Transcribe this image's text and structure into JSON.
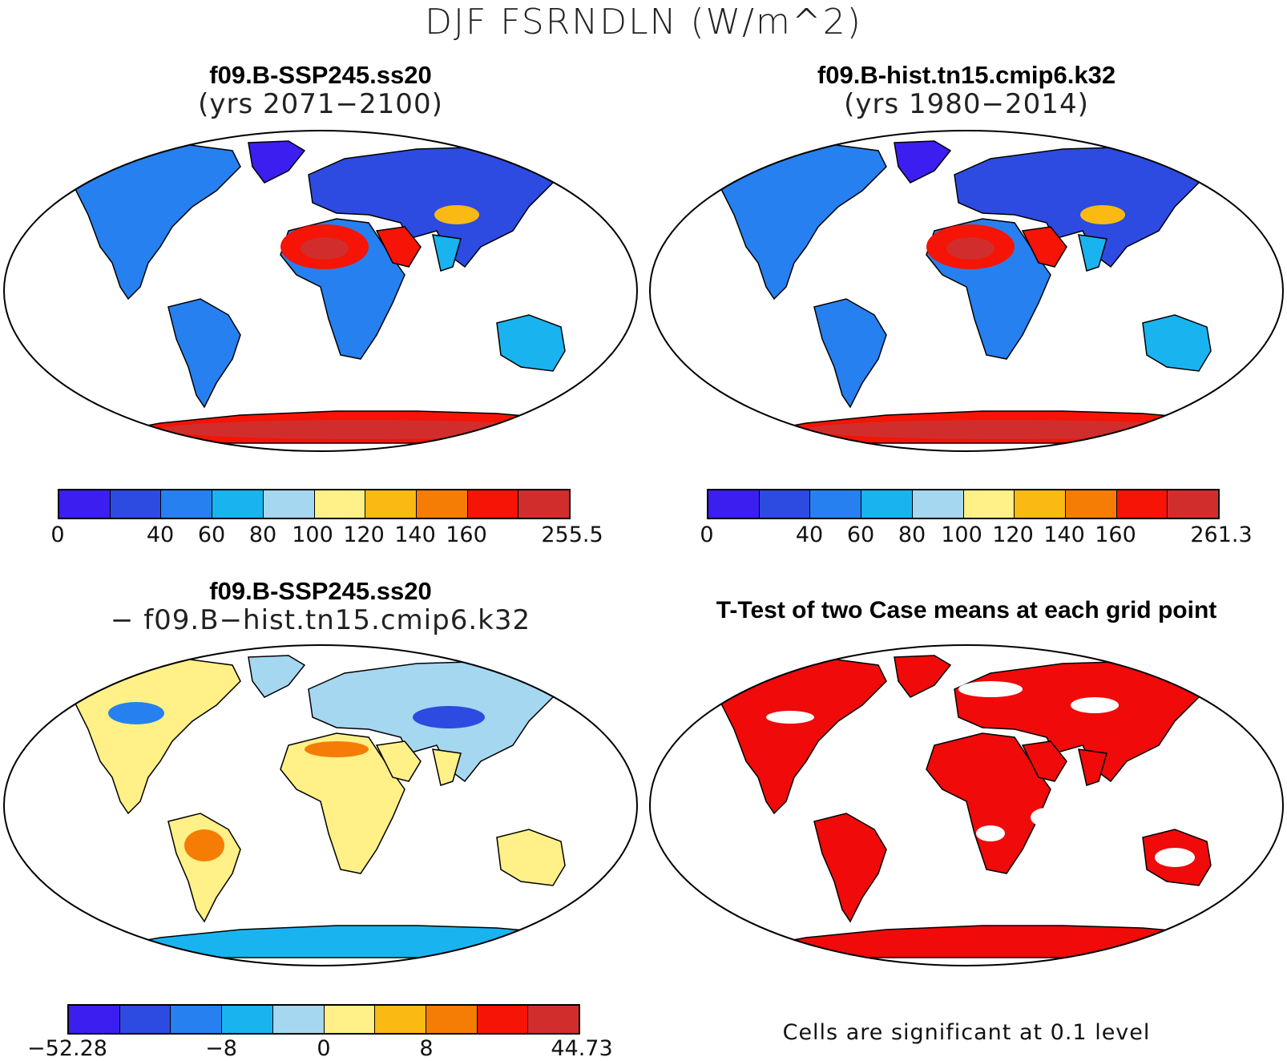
{
  "figure": {
    "main_title": "DJF FSRNDLN (W/m^2)"
  },
  "panels": {
    "top_left": {
      "title": "f09.B-SSP245.ss20",
      "subtitle": "(yrs 2071−2100)",
      "colorbar": {
        "colors": [
          "#3c1ef0",
          "#2d4be0",
          "#2680f0",
          "#19b4f0",
          "#a5d7f0",
          "#fff087",
          "#fbb914",
          "#f57d05",
          "#f51405",
          "#d22d2d"
        ],
        "labels": [
          "0",
          "40",
          "60",
          "80",
          "100",
          "120",
          "140",
          "160",
          "255.5"
        ]
      }
    },
    "top_right": {
      "title": "f09.B-hist.tn15.cmip6.k32",
      "subtitle": "(yrs 1980−2014)",
      "colorbar": {
        "colors": [
          "#3c1ef0",
          "#2d4be0",
          "#2680f0",
          "#19b4f0",
          "#a5d7f0",
          "#fff087",
          "#fbb914",
          "#f57d05",
          "#f51405",
          "#d22d2d"
        ],
        "labels": [
          "0",
          "40",
          "60",
          "80",
          "100",
          "120",
          "140",
          "160",
          "261.3"
        ]
      }
    },
    "bottom_left": {
      "title": "f09.B-SSP245.ss20",
      "subtitle": "− f09.B−hist.tn15.cmip6.k32",
      "colorbar": {
        "colors": [
          "#3c1ef0",
          "#2d4be0",
          "#2680f0",
          "#19b4f0",
          "#a5d7f0",
          "#fff087",
          "#fbb914",
          "#f57d05",
          "#f51405",
          "#d22d2d"
        ],
        "labels": [
          "−52.28",
          "−8",
          "0",
          "8",
          "44.73"
        ]
      }
    },
    "bottom_right": {
      "title": "T-Test of two Case means at each grid point",
      "footnote": "Cells are significant at 0.1 level",
      "significant_color": "#f00a0a"
    }
  }
}
